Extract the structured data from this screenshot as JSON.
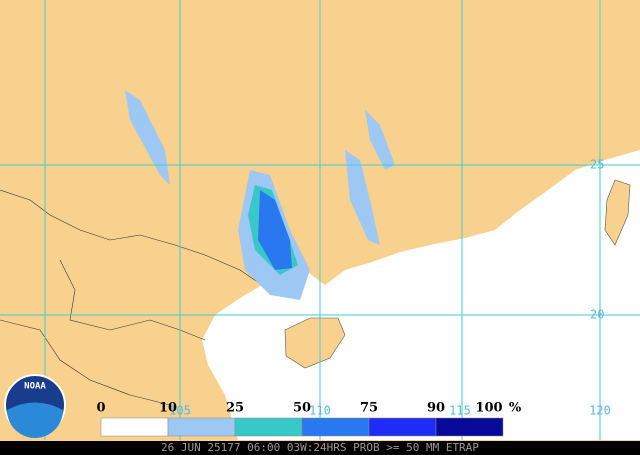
{
  "map": {
    "latitude_labels": [
      "25",
      "20"
    ],
    "longitude_labels": [
      "105",
      "110",
      "115",
      "120"
    ],
    "legend": {
      "ticks": [
        0,
        10,
        25,
        50,
        75,
        90,
        100
      ],
      "unit": "%",
      "colors": [
        "#ffffff",
        "#9ec8f4",
        "#38c8c8",
        "#2a78f0",
        "#1f2cf8",
        "#0a0a9a"
      ]
    },
    "caption": "26 JUN 25177 06:00 03W:24HRS PROB >= 50 MM ETRAP",
    "logo": "NOAA"
  }
}
